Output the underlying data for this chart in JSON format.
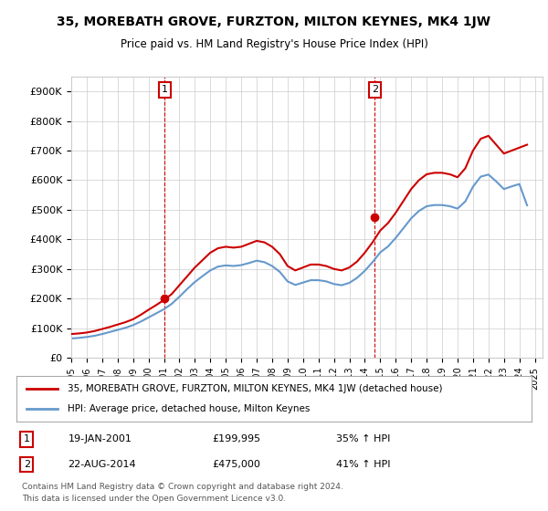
{
  "title": "35, MOREBATH GROVE, FURZTON, MILTON KEYNES, MK4 1JW",
  "subtitle": "Price paid vs. HM Land Registry's House Price Index (HPI)",
  "legend_line1": "35, MOREBATH GROVE, FURZTON, MILTON KEYNES, MK4 1JW (detached house)",
  "legend_line2": "HPI: Average price, detached house, Milton Keynes",
  "annotation1_label": "1",
  "annotation1_date": "19-JAN-2001",
  "annotation1_price": "£199,995",
  "annotation1_hpi": "35% ↑ HPI",
  "annotation2_label": "2",
  "annotation2_date": "22-AUG-2014",
  "annotation2_price": "£475,000",
  "annotation2_hpi": "41% ↑ HPI",
  "footnote1": "Contains HM Land Registry data © Crown copyright and database right 2024.",
  "footnote2": "This data is licensed under the Open Government Licence v3.0.",
  "red_color": "#cc0000",
  "blue_color": "#6699cc",
  "background_color": "#ffffff",
  "grid_color": "#cccccc",
  "ylim": [
    0,
    950000
  ],
  "yticks": [
    0,
    100000,
    200000,
    300000,
    400000,
    500000,
    600000,
    700000,
    800000,
    900000
  ],
  "xlim_start": 1995.0,
  "xlim_end": 2025.5,
  "sale1_x": 2001.05,
  "sale1_y": 199995,
  "sale2_x": 2014.65,
  "sale2_y": 475000,
  "vline1_x": 2001.05,
  "vline2_x": 2014.65,
  "red_hpi_x": [
    1995.0,
    1995.5,
    1996.0,
    1996.5,
    1997.0,
    1997.5,
    1998.0,
    1998.5,
    1999.0,
    1999.5,
    2000.0,
    2000.5,
    2001.0,
    2001.5,
    2002.0,
    2002.5,
    2003.0,
    2003.5,
    2004.0,
    2004.5,
    2005.0,
    2005.5,
    2006.0,
    2006.5,
    2007.0,
    2007.5,
    2008.0,
    2008.5,
    2009.0,
    2009.5,
    2010.0,
    2010.5,
    2011.0,
    2011.5,
    2012.0,
    2012.5,
    2013.0,
    2013.5,
    2014.0,
    2014.5,
    2015.0,
    2015.5,
    2016.0,
    2016.5,
    2017.0,
    2017.5,
    2018.0,
    2018.5,
    2019.0,
    2019.5,
    2020.0,
    2020.5,
    2021.0,
    2021.5,
    2022.0,
    2022.5,
    2023.0,
    2023.5,
    2024.0,
    2024.5
  ],
  "red_hpi_y": [
    80000,
    82000,
    85000,
    90000,
    97000,
    104000,
    112000,
    120000,
    130000,
    145000,
    162000,
    178000,
    195000,
    215000,
    245000,
    275000,
    305000,
    330000,
    355000,
    370000,
    375000,
    372000,
    375000,
    385000,
    395000,
    390000,
    375000,
    350000,
    310000,
    295000,
    305000,
    315000,
    315000,
    310000,
    300000,
    295000,
    305000,
    325000,
    355000,
    390000,
    430000,
    455000,
    490000,
    530000,
    570000,
    600000,
    620000,
    625000,
    625000,
    620000,
    610000,
    640000,
    700000,
    740000,
    750000,
    720000,
    690000,
    700000,
    710000,
    720000
  ],
  "blue_hpi_x": [
    1995.0,
    1995.5,
    1996.0,
    1996.5,
    1997.0,
    1997.5,
    1998.0,
    1998.5,
    1999.0,
    1999.5,
    2000.0,
    2000.5,
    2001.0,
    2001.5,
    2002.0,
    2002.5,
    2003.0,
    2003.5,
    2004.0,
    2004.5,
    2005.0,
    2005.5,
    2006.0,
    2006.5,
    2007.0,
    2007.5,
    2008.0,
    2008.5,
    2009.0,
    2009.5,
    2010.0,
    2010.5,
    2011.0,
    2011.5,
    2012.0,
    2012.5,
    2013.0,
    2013.5,
    2014.0,
    2014.5,
    2015.0,
    2015.5,
    2016.0,
    2016.5,
    2017.0,
    2017.5,
    2018.0,
    2018.5,
    2019.0,
    2019.5,
    2020.0,
    2020.5,
    2021.0,
    2021.5,
    2022.0,
    2022.5,
    2023.0,
    2023.5,
    2024.0,
    2024.5
  ],
  "blue_hpi_y": [
    65000,
    67000,
    70000,
    74000,
    80000,
    87000,
    94000,
    101000,
    110000,
    122000,
    136000,
    150000,
    164000,
    182000,
    206000,
    232000,
    256000,
    276000,
    295000,
    308000,
    312000,
    310000,
    313000,
    320000,
    328000,
    323000,
    310000,
    290000,
    258000,
    246000,
    254000,
    262000,
    262000,
    258000,
    249000,
    245000,
    253000,
    270000,
    294000,
    323000,
    356000,
    376000,
    405000,
    438000,
    471000,
    496000,
    512000,
    516000,
    516000,
    512000,
    504000,
    528000,
    578000,
    612000,
    619000,
    596000,
    570000,
    579000,
    587000,
    515000
  ]
}
